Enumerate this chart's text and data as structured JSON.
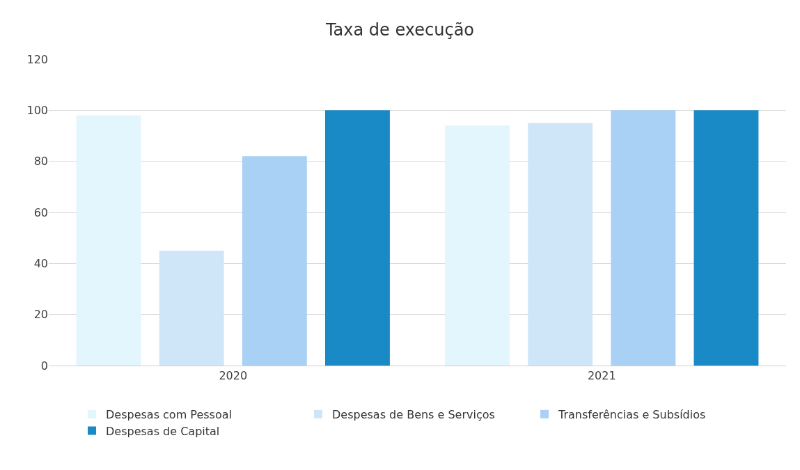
{
  "chart_data": {
    "type": "bar",
    "title": "Taxa de execução",
    "categories": [
      "2020",
      "2021"
    ],
    "series": [
      {
        "name": "Despesas com Pessoal",
        "color": "#e3f6fd",
        "values": [
          98,
          94
        ]
      },
      {
        "name": "Despesas de Bens e Serviços",
        "color": "#cfe6f8",
        "values": [
          45,
          95
        ]
      },
      {
        "name": "Transferências e Subsídios",
        "color": "#a9d1f5",
        "values": [
          82,
          100
        ]
      },
      {
        "name": "Despesas de Capital",
        "color": "#1a8ac6",
        "values": [
          100,
          100
        ]
      }
    ],
    "ylim": [
      0,
      120
    ],
    "yticks": [
      0,
      20,
      40,
      60,
      80,
      100,
      120
    ],
    "grid": "y",
    "legend": "bottom"
  }
}
